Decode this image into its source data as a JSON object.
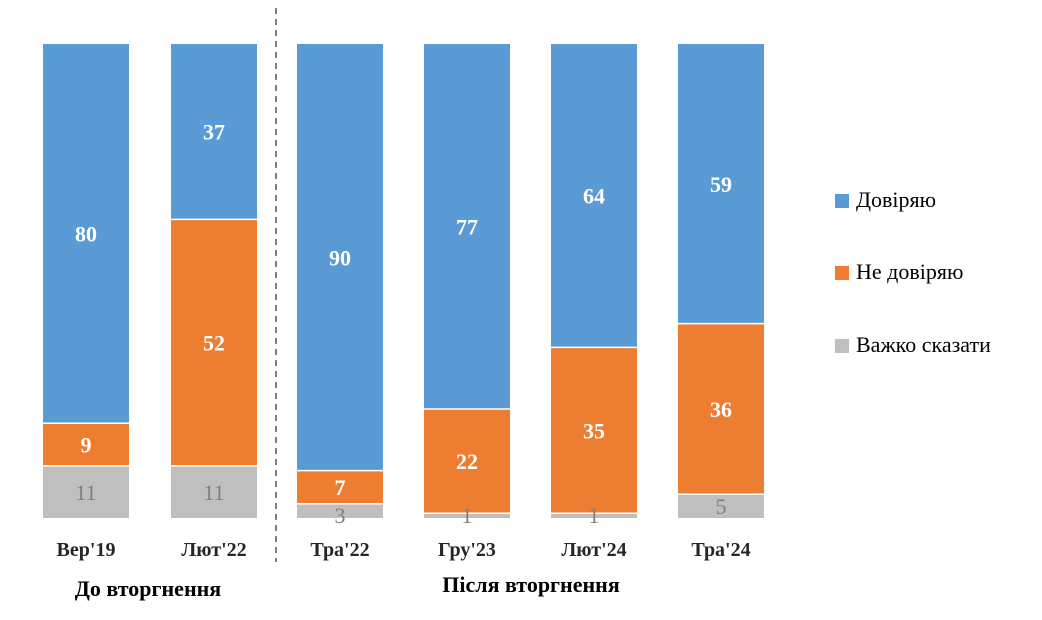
{
  "chart_data": {
    "type": "bar",
    "stacked": true,
    "percent_scale": true,
    "categories": [
      "Вер'19",
      "Лют'22",
      "Тра'22",
      "Гру'23",
      "Лют'24",
      "Тра'24"
    ],
    "series": [
      {
        "name": "Важко сказати",
        "values": [
          11,
          11,
          3,
          1,
          1,
          5
        ],
        "color": "#bfbfbf",
        "label_color": "#7f7f7f"
      },
      {
        "name": "Не довіряю",
        "values": [
          9,
          52,
          7,
          22,
          35,
          36
        ],
        "color": "#ed7d31",
        "label_color": "#ffffff"
      },
      {
        "name": "Довіряю",
        "values": [
          80,
          37,
          90,
          77,
          64,
          59
        ],
        "color": "#5b9bd5",
        "label_color": "#ffffff"
      }
    ],
    "legend": {
      "position": "right",
      "items": [
        "Довіряю",
        "Не довіряю",
        "Важко сказати"
      ]
    },
    "groups": [
      {
        "label": "До вторгнення",
        "categories": [
          0,
          1
        ]
      },
      {
        "label": "Після вторгнення",
        "categories": [
          2,
          3,
          4,
          5
        ]
      }
    ],
    "divider": "dashed vertical line between Лют'22 and Тра'22",
    "grid": false
  }
}
